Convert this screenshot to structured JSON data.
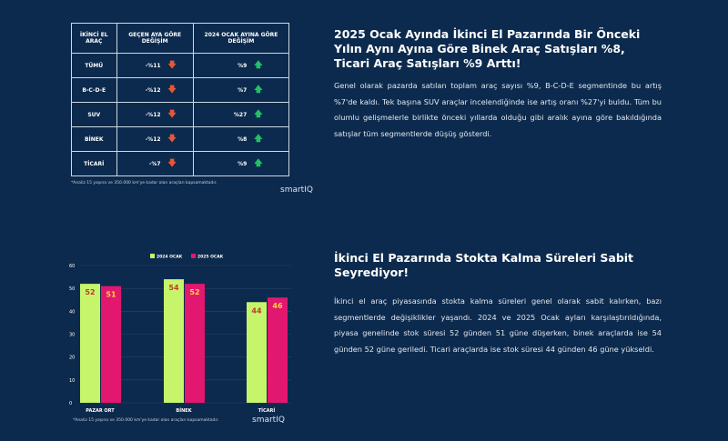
{
  "table": {
    "headers": [
      "İKİNCİ EL ARAÇ",
      "GEÇEN AYA GÖRE DEĞİŞİM",
      "2024 OCAK AYINA GÖRE DEĞİŞİM"
    ],
    "rows": [
      [
        "TÜMÜ",
        "-%11",
        "%9"
      ],
      [
        "B-C-D-E",
        "-%12",
        "%7"
      ],
      [
        "SUV",
        "-%12",
        "%27"
      ],
      [
        "BİNEK",
        "-%12",
        "%8"
      ],
      [
        "TİCARİ",
        "-%7",
        "%9"
      ]
    ],
    "note": "*Analiz 15 yaşına ve 350.000 km'ye kadar olan araçları kapsamaktadır."
  },
  "logo": "smartIQ",
  "section1": {
    "title": "2025 Ocak Ayında İkinci El Pazarında Bir Önceki Yılın Aynı Ayına Göre Binek Araç Satışları %8, Ticari Araç Satışları %9 Arttı!",
    "body": "Genel olarak pazarda satılan toplam araç sayısı %9, B-C-D-E segmentinde bu artış %7'de kaldı. Tek başına SUV araçlar incelendiğinde ise artış oranı %27'yi buldu. Tüm bu olumlu gelişmelerle birlikte önceki yıllarda olduğu gibi aralık ayına göre bakıldığında satışlar tüm segmentlerde düşüş gösterdi."
  },
  "section2": {
    "title": "İkinci El Pazarında Stokta Kalma Süreleri Sabit Seyrediyor!",
    "body": "İkinci el araç piyasasında stokta kalma süreleri genel olarak sabit kalırken, bazı segmentlerde değişiklikler yaşandı. 2024 ve 2025 Ocak ayları karşılaştırıldığında, piyasa genelinde stok süresi 52 günden 51 güne düşerken, binek araçlarda ise 54 günden 52 güne geriledi. Ticari araçlarda ise stok süresi 44 günden 46 güne yükseldi."
  },
  "chart_data": {
    "type": "bar",
    "categories": [
      "PAZAR ORT",
      "BİNEK",
      "TİCARİ"
    ],
    "series": [
      {
        "name": "2024 OCAK",
        "values": [
          52,
          54,
          44
        ],
        "color": "#c6f56b"
      },
      {
        "name": "2025 OCAK",
        "values": [
          51,
          52,
          46
        ],
        "color": "#e2176f"
      }
    ],
    "ylim": [
      0,
      60
    ],
    "yticks": [
      0,
      10,
      20,
      30,
      40,
      50,
      60
    ],
    "grid": true,
    "legend": "top",
    "note": "*Analiz 15 yaşına ve 350.000 km'ye kadar olan araçları kapsamaktadır."
  }
}
